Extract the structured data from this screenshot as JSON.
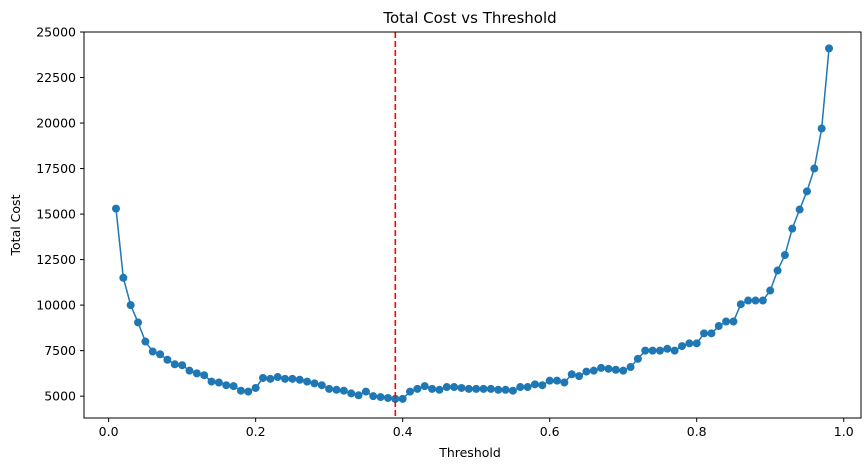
{
  "chart_data": {
    "type": "line",
    "title": "Total Cost vs Threshold",
    "xlabel": "Threshold",
    "ylabel": "Total Cost",
    "xlim": [
      -0.0335,
      1.0235
    ],
    "ylim": [
      3800,
      25000
    ],
    "xticks": [
      0.0,
      0.2,
      0.4,
      0.6,
      0.8,
      1.0
    ],
    "xtick_labels": [
      "0.0",
      "0.2",
      "0.4",
      "0.6",
      "0.8",
      "1.0"
    ],
    "yticks": [
      5000,
      7500,
      10000,
      12500,
      15000,
      17500,
      20000,
      22500,
      25000
    ],
    "ytick_labels": [
      "5000",
      "7500",
      "10000",
      "12500",
      "15000",
      "17500",
      "20000",
      "22500",
      "25000"
    ],
    "grid": false,
    "series": [
      {
        "color": "#1f77b4",
        "marker": "circle",
        "x": [
          0.01,
          0.02,
          0.03,
          0.04,
          0.05,
          0.06,
          0.07,
          0.08,
          0.09,
          0.1,
          0.11,
          0.12,
          0.13,
          0.14,
          0.15,
          0.16,
          0.17,
          0.18,
          0.19,
          0.2,
          0.21,
          0.22,
          0.23,
          0.24,
          0.25,
          0.26,
          0.27,
          0.28,
          0.29,
          0.3,
          0.31,
          0.32,
          0.33,
          0.34,
          0.35,
          0.36,
          0.37,
          0.38,
          0.39,
          0.4,
          0.41,
          0.42,
          0.43,
          0.44,
          0.45,
          0.46,
          0.47,
          0.48,
          0.49,
          0.5,
          0.51,
          0.52,
          0.53,
          0.54,
          0.55,
          0.56,
          0.57,
          0.58,
          0.59,
          0.6,
          0.61,
          0.62,
          0.63,
          0.64,
          0.65,
          0.66,
          0.67,
          0.68,
          0.69,
          0.7,
          0.71,
          0.72,
          0.73,
          0.74,
          0.75,
          0.76,
          0.77,
          0.78,
          0.79,
          0.8,
          0.81,
          0.82,
          0.83,
          0.84,
          0.85,
          0.86,
          0.87,
          0.88,
          0.89,
          0.9,
          0.91,
          0.92,
          0.93,
          0.94,
          0.95,
          0.96,
          0.97,
          0.98
        ],
        "y": [
          15300,
          11500,
          10000,
          9050,
          8000,
          7450,
          7300,
          7000,
          6750,
          6700,
          6400,
          6250,
          6150,
          5800,
          5750,
          5600,
          5550,
          5300,
          5250,
          5450,
          6000,
          5950,
          6050,
          5950,
          5950,
          5900,
          5800,
          5700,
          5600,
          5400,
          5350,
          5300,
          5150,
          5050,
          5250,
          5000,
          4950,
          4900,
          4850,
          4850,
          5250,
          5400,
          5550,
          5400,
          5350,
          5500,
          5500,
          5450,
          5400,
          5400,
          5400,
          5400,
          5350,
          5350,
          5300,
          5500,
          5500,
          5650,
          5600,
          5850,
          5850,
          5750,
          6200,
          6100,
          6350,
          6400,
          6550,
          6500,
          6450,
          6400,
          6600,
          7050,
          7500,
          7500,
          7500,
          7600,
          7500,
          7750,
          7900,
          7900,
          8450,
          8450,
          8850,
          9100,
          9100,
          10050,
          10250,
          10250,
          10250,
          10800,
          11900,
          12750,
          14200,
          15250,
          16250,
          17500,
          19700,
          24100
        ]
      }
    ],
    "annotations": [
      {
        "type": "vline",
        "x": 0.39,
        "color": "#ff0000",
        "style": "dashed"
      }
    ]
  }
}
